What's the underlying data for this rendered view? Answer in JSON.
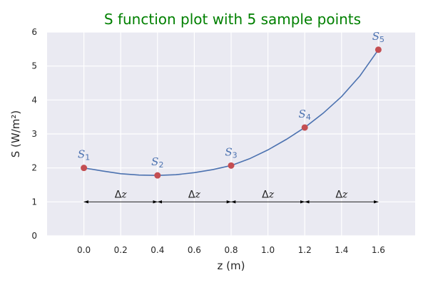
{
  "chart_data": {
    "type": "line",
    "title": "S function plot with 5 sample points",
    "xlabel": "z (m)",
    "ylabel": "S (W/m²)",
    "xlim": [
      -0.2,
      1.8
    ],
    "ylim": [
      0,
      6
    ],
    "xticks": [
      0.0,
      0.2,
      0.4,
      0.6,
      0.8,
      1.0,
      1.2,
      1.4,
      1.6
    ],
    "xtick_labels": [
      "0.0",
      "0.2",
      "0.4",
      "0.6",
      "0.8",
      "1.0",
      "1.2",
      "1.4",
      "1.6"
    ],
    "yticks": [
      0,
      1,
      2,
      3,
      4,
      5,
      6
    ],
    "ytick_labels": [
      "0",
      "1",
      "2",
      "3",
      "4",
      "5",
      "6"
    ],
    "grid": true,
    "series": [
      {
        "kind": "curve",
        "x": [
          0.0,
          0.1,
          0.2,
          0.3,
          0.4,
          0.5,
          0.6,
          0.7,
          0.8,
          0.9,
          1.0,
          1.1,
          1.2,
          1.3,
          1.4,
          1.5,
          1.6
        ],
        "y": [
          2.0,
          1.91,
          1.83,
          1.79,
          1.78,
          1.8,
          1.86,
          1.95,
          2.07,
          2.27,
          2.53,
          2.84,
          3.19,
          3.61,
          4.1,
          4.71,
          5.48
        ]
      },
      {
        "kind": "samples",
        "x": [
          0.0,
          0.4,
          0.8,
          1.2,
          1.6
        ],
        "y": [
          2.0,
          1.78,
          2.07,
          3.19,
          5.48
        ],
        "labels": [
          {
            "base": "S",
            "sub": "1"
          },
          {
            "base": "S",
            "sub": "2"
          },
          {
            "base": "S",
            "sub": "3"
          },
          {
            "base": "S",
            "sub": "4"
          },
          {
            "base": "S",
            "sub": "5"
          }
        ]
      }
    ],
    "annotations": {
      "delta_label": {
        "symbol": "Δ",
        "var": "z"
      },
      "delta_intervals": [
        [
          0.0,
          0.4
        ],
        [
          0.4,
          0.8
        ],
        [
          0.8,
          1.2
        ],
        [
          1.2,
          1.6
        ]
      ],
      "delta_y": 1.0
    },
    "colors": {
      "background": "#eaeaf2",
      "grid": "#ffffff",
      "curve": "#4c72b0",
      "point": "#c44e52",
      "point_label": "#4c72b0",
      "title": "#008000",
      "arrow": "#000000"
    }
  }
}
